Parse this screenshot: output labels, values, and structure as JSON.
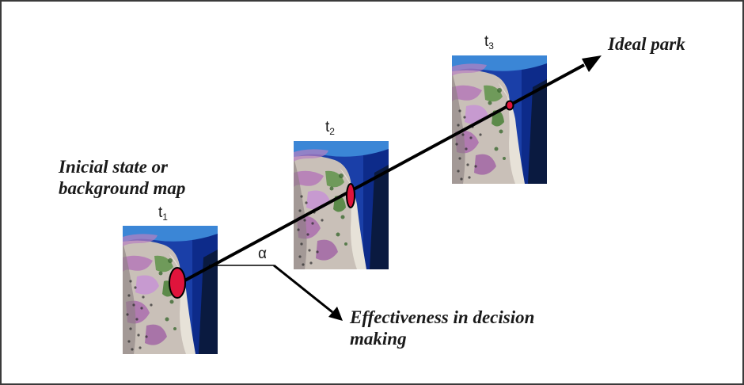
{
  "labels": {
    "initial_line1": "Inicial state or",
    "initial_line2": "background map",
    "ideal": "Ideal park",
    "effectiveness_line1": "Effectiveness in decision",
    "effectiveness_line2": "making",
    "angle": "α"
  },
  "time_steps": [
    {
      "letter": "t",
      "index": "1"
    },
    {
      "letter": "t",
      "index": "2"
    },
    {
      "letter": "t",
      "index": "3"
    }
  ],
  "colors": {
    "arrow": "#000000",
    "marker": "#e0143c",
    "sea": "#1a3fa8",
    "border": "#3a3a3a"
  }
}
